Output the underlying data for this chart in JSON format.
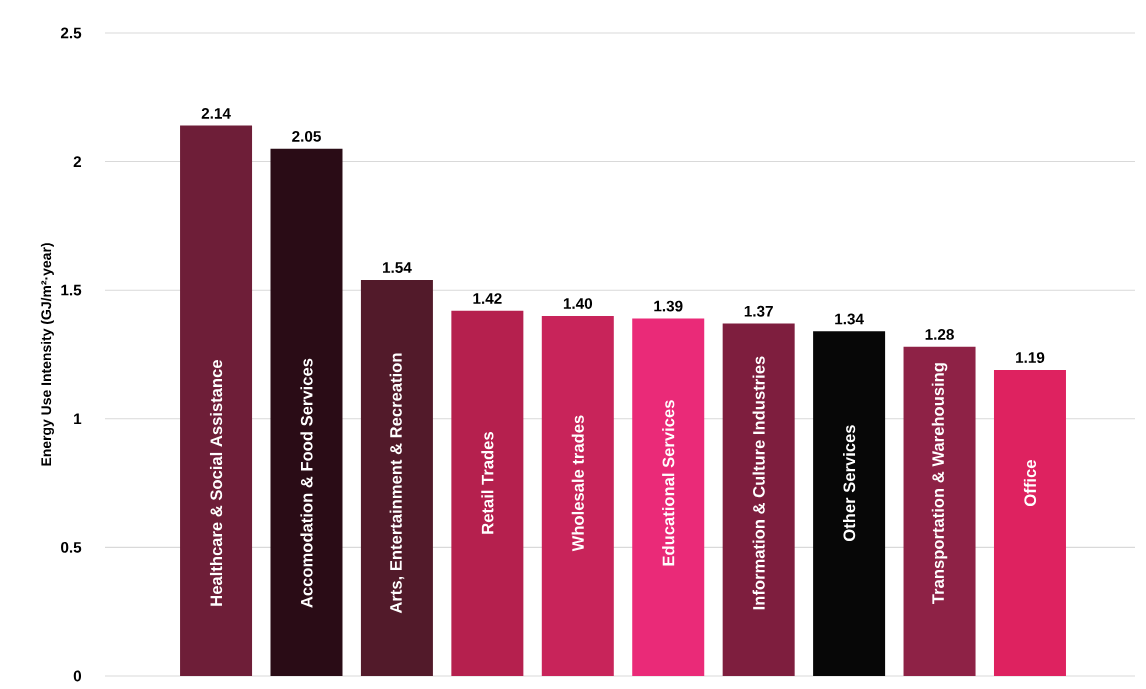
{
  "chart_data": {
    "type": "bar",
    "ylabel": "Energy Use Intensity (GJ/m²·year)",
    "categories": [
      "Healthcare & Social Assistance",
      "Accomodation & Food Services",
      "Arts, Entertainment & Recreation",
      "Retail Trades",
      "Wholesale trades",
      "Educational Services",
      "Information & Culture Industries",
      "Other Services",
      "Transportation & Warehousing",
      "Office"
    ],
    "values": [
      2.14,
      2.05,
      1.54,
      1.42,
      1.4,
      1.39,
      1.37,
      1.34,
      1.28,
      1.19
    ],
    "value_labels": [
      "2.14",
      "2.05",
      "1.54",
      "1.42",
      "1.40",
      "1.39",
      "1.37",
      "1.34",
      "1.28",
      "1.19"
    ],
    "colors": [
      "#6e1e38",
      "#2a0c16",
      "#521a2a",
      "#b5204e",
      "#c8245a",
      "#ea2a78",
      "#7e1e3e",
      "#070707",
      "#8e2246",
      "#de2260"
    ],
    "ylim": [
      0,
      2.5
    ],
    "yticks": [
      0,
      0.5,
      1,
      1.5,
      2,
      2.5
    ],
    "grid": "y"
  }
}
